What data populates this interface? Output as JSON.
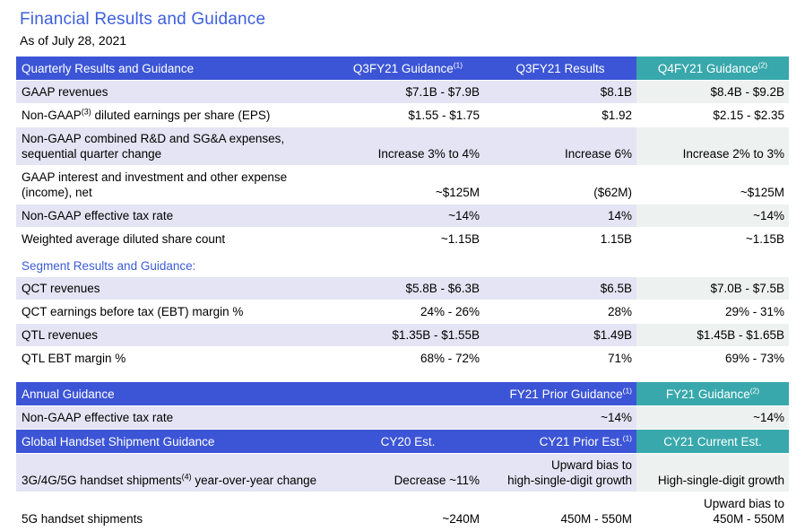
{
  "page": {
    "title": "Financial Results and Guidance",
    "subtitle": "As of July 28, 2021"
  },
  "colors": {
    "header_blue": "#3C55D6",
    "header_teal": "#38A8AC",
    "row_lavender": "#E4E4F4",
    "row_teal_tint": "#EDF1F0",
    "title_blue": "#3D5FDE",
    "section_blue": "#3C5BD9",
    "text_black": "#000000"
  },
  "quarterly": {
    "header": {
      "title": "Quarterly Results and Guidance",
      "col2": {
        "pre": "Q3FY21 Guidance",
        "sup": "(1)"
      },
      "col3": {
        "pre": "Q3FY21 Results"
      },
      "col4": {
        "pre": "Q4FY21 Guidance",
        "sup": "(2)"
      }
    },
    "rows": [
      {
        "label": {
          "pre": "GAAP revenues"
        },
        "values": [
          "$7.1B - $7.9B",
          "$8.1B",
          "$8.4B - $9.2B"
        ]
      },
      {
        "label": {
          "pre": "Non-GAAP",
          "sup": "(3)",
          "post": " diluted earnings per share (EPS)"
        },
        "values": [
          "$1.55 - $1.75",
          "$1.92",
          "$2.15 - $2.35"
        ]
      },
      {
        "label": {
          "pre": "Non-GAAP combined R&D and SG&A expenses, sequential quarter change"
        },
        "values": [
          "Increase 3% to 4%",
          "Increase 6%",
          "Increase 2% to 3%"
        ]
      },
      {
        "label": {
          "pre": "GAAP interest and investment and other expense (income), net"
        },
        "values": [
          "~$125M",
          "($62M)",
          "~$125M"
        ]
      },
      {
        "label": {
          "pre": "Non-GAAP effective tax rate"
        },
        "values": [
          "~14%",
          "14%",
          "~14%"
        ]
      },
      {
        "label": {
          "pre": "Weighted average diluted share count"
        },
        "values": [
          "~1.15B",
          "1.15B",
          "~1.15B"
        ]
      }
    ]
  },
  "segment": {
    "heading": "Segment Results and Guidance:",
    "rows": [
      {
        "label": {
          "pre": "QCT revenues"
        },
        "values": [
          "$5.8B - $6.3B",
          "$6.5B",
          "$7.0B - $7.5B"
        ]
      },
      {
        "label": {
          "pre": "QCT earnings before tax (EBT) margin %"
        },
        "values": [
          "24% - 26%",
          "28%",
          "29% - 31%"
        ]
      },
      {
        "label": {
          "pre": "QTL revenues"
        },
        "values": [
          "$1.35B - $1.55B",
          "$1.49B",
          "$1.45B - $1.65B"
        ]
      },
      {
        "label": {
          "pre": "QTL EBT margin %"
        },
        "values": [
          "68% - 72%",
          "71%",
          "69% - 73%"
        ]
      }
    ]
  },
  "annual": {
    "header": {
      "title": "Annual Guidance",
      "col3": {
        "pre": "FY21 Prior Guidance",
        "sup": "(1)"
      },
      "col4": {
        "pre": "FY21 Guidance",
        "sup": "(2)"
      }
    },
    "rows": [
      {
        "label": {
          "pre": "Non-GAAP effective tax rate"
        },
        "values": [
          "",
          "~14%",
          "~14%"
        ]
      }
    ]
  },
  "handset": {
    "header": {
      "title": "Global Handset Shipment Guidance",
      "col2": {
        "pre": "CY20 Est."
      },
      "col3": {
        "pre": "CY21 Prior Est.",
        "sup": "(1)"
      },
      "col4": {
        "pre": "CY21 Current Est."
      }
    },
    "rows": [
      {
        "label": {
          "pre": "3G/4G/5G handset shipments",
          "sup": "(4)",
          "post": " year-over-year change"
        },
        "values": [
          "Decrease ~11%",
          "Upward bias to\nhigh-single-digit growth",
          "High-single-digit growth"
        ]
      },
      {
        "label": {
          "pre": "5G handset shipments"
        },
        "values": [
          "~240M",
          "450M - 550M",
          "Upward bias to\n450M - 550M"
        ]
      }
    ]
  }
}
